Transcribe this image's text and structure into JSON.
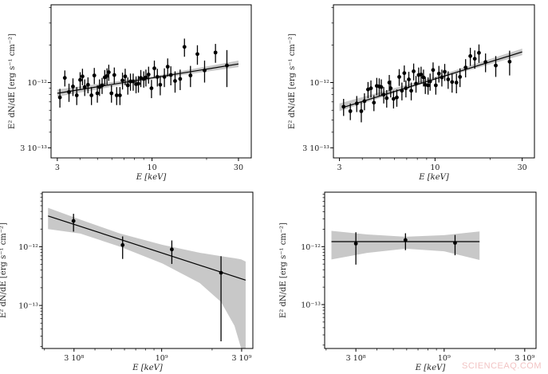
{
  "watermark": "SCIENCEAQ.COM",
  "colors": {
    "points": "#000000",
    "fit_line": "#000000",
    "band": "#c8c8c8",
    "axes": "#000000"
  },
  "chart_data": [
    {
      "type": "scatter",
      "xlabel": "E [keV]",
      "ylabel": "E² dN/dE [erg s⁻¹ cm⁻²]",
      "xscale": "log",
      "yscale": "log",
      "xlim": [
        2.77,
        35.3
      ],
      "ylim": [
        2.49e-13,
        4.2e-12
      ],
      "xticks": [
        {
          "value": 3,
          "label": "3"
        },
        {
          "value": 10,
          "label": "10"
        },
        {
          "value": 30,
          "label": "30"
        }
      ],
      "yticks": [
        {
          "value": 1e-12,
          "label": "10⁻¹²"
        },
        {
          "value": 3e-13,
          "label": "3 10⁻¹³"
        }
      ],
      "xminor": [
        4,
        5,
        6,
        7,
        8,
        9,
        20
      ],
      "yminor": [
        4e-13,
        5e-13,
        6e-13,
        7e-13,
        8e-13,
        9e-13,
        2e-12,
        3e-12,
        4e-12
      ],
      "points": [
        [
          3.1,
          7.6e-13,
          1.3e-13
        ],
        [
          3.3,
          1.09e-12,
          1.6e-13
        ],
        [
          3.48,
          8.4e-13,
          1.4e-13
        ],
        [
          3.66,
          9.3e-13,
          1.5e-13
        ],
        [
          3.84,
          7.9e-13,
          1.3e-13
        ],
        [
          4.01,
          1.05e-12,
          1.6e-13
        ],
        [
          4.13,
          1.12e-12,
          1.7e-13
        ],
        [
          4.25,
          9.2e-13,
          1.4e-13
        ],
        [
          4.43,
          9.6e-13,
          1.4e-13
        ],
        [
          4.63,
          7.9e-13,
          1.3e-13
        ],
        [
          4.8,
          1.14e-12,
          1.7e-13
        ],
        [
          4.99,
          8.2e-13,
          1.3e-13
        ],
        [
          5.13,
          9.2e-13,
          1.4e-13
        ],
        [
          5.3,
          9.5e-13,
          1.4e-13
        ],
        [
          5.48,
          1.1e-12,
          1.6e-13
        ],
        [
          5.64,
          1.13e-12,
          1.7e-13
        ],
        [
          5.77,
          1.21e-12,
          1.8e-13
        ],
        [
          5.97,
          8.2e-13,
          1.3e-13
        ],
        [
          6.19,
          1.15e-12,
          1.7e-13
        ],
        [
          6.38,
          7.9e-13,
          1.3e-13
        ],
        [
          6.65,
          7.9e-13,
          1.3e-13
        ],
        [
          6.87,
          1.04e-12,
          1.6e-13
        ],
        [
          7.11,
          1.12e-12,
          1.7e-13
        ],
        [
          7.35,
          9.5e-13,
          1.5e-13
        ],
        [
          7.6,
          1.02e-12,
          1.6e-13
        ],
        [
          7.87,
          1.02e-12,
          1.6e-13
        ],
        [
          8.16,
          9.7e-13,
          1.5e-13
        ],
        [
          8.41,
          9.8e-13,
          1.5e-13
        ],
        [
          8.67,
          1.09e-12,
          1.7e-13
        ],
        [
          9.0,
          1.07e-12,
          1.6e-13
        ],
        [
          9.25,
          1.1e-12,
          1.7e-13
        ],
        [
          9.57,
          1.16e-12,
          1.8e-13
        ],
        [
          9.93,
          9e-13,
          1.5e-13
        ],
        [
          10.3,
          1.3e-12,
          2e-13
        ],
        [
          10.7,
          1.11e-12,
          1.8e-13
        ],
        [
          11.1,
          9.6e-13,
          1.7e-13
        ],
        [
          11.7,
          1.11e-12,
          1.9e-13
        ],
        [
          12.2,
          1.34e-12,
          2.2e-13
        ],
        [
          12.7,
          1.15e-12,
          2e-13
        ],
        [
          13.4,
          1.03e-12,
          2e-13
        ],
        [
          14.3,
          1.07e-12,
          2e-13
        ],
        [
          15.1,
          1.93e-12,
          3.2e-13
        ],
        [
          16.3,
          1.14e-12,
          2.2e-13
        ],
        [
          17.8,
          1.69e-12,
          3e-13
        ],
        [
          19.5,
          1.25e-12,
          2.5e-13
        ],
        [
          22.4,
          1.74e-12,
          3e-13
        ],
        [
          25.9,
          1.37e-12,
          4.5e-13
        ]
      ],
      "fit_line": [
        [
          3,
          8.2e-13
        ],
        [
          30,
          1.41e-12
        ]
      ],
      "band": [
        [
          3,
          7.7e-13,
          8.8e-13
        ],
        [
          10,
          1.06e-12,
          1.12e-12
        ],
        [
          30,
          1.33e-12,
          1.5e-12
        ]
      ]
    },
    {
      "type": "scatter",
      "xlabel": "E [keV]",
      "ylabel": "E² dN/dE [erg s⁻¹ cm⁻²]",
      "xscale": "log",
      "yscale": "log",
      "xlim": [
        2.78,
        35.0
      ],
      "ylim": [
        2.49e-13,
        4.2e-12
      ],
      "xticks": [
        {
          "value": 3,
          "label": "3"
        },
        {
          "value": 10,
          "label": "10"
        },
        {
          "value": 30,
          "label": "30"
        }
      ],
      "yticks": [
        {
          "value": 1e-12,
          "label": "10⁻¹²"
        },
        {
          "value": 3e-13,
          "label": "3 10⁻¹³"
        }
      ],
      "xminor": [
        4,
        5,
        6,
        7,
        8,
        9,
        20
      ],
      "yminor": [
        4e-13,
        5e-13,
        6e-13,
        7e-13,
        8e-13,
        9e-13,
        2e-12,
        3e-12,
        4e-12
      ],
      "points": [
        [
          3.16,
          6.4e-13,
          1e-13
        ],
        [
          3.44,
          5.9e-13,
          9e-14
        ],
        [
          3.73,
          6.8e-13,
          1e-13
        ],
        [
          3.95,
          5.9e-13,
          1.1e-13
        ],
        [
          4.11,
          7.1e-13,
          1.1e-13
        ],
        [
          4.3,
          8.8e-13,
          1.3e-13
        ],
        [
          4.46,
          9e-13,
          1.4e-13
        ],
        [
          4.63,
          6.9e-13,
          1e-13
        ],
        [
          4.8,
          9.4e-13,
          1.5e-13
        ],
        [
          4.95,
          9.3e-13,
          1.5e-13
        ],
        [
          5.08,
          9.2e-13,
          1.4e-13
        ],
        [
          5.24,
          8e-13,
          1.2e-13
        ],
        [
          5.44,
          7.5e-13,
          1.2e-13
        ],
        [
          5.62,
          1e-12,
          1.5e-13
        ],
        [
          5.72,
          9e-13,
          1.4e-13
        ],
        [
          5.93,
          7.4e-13,
          1.2e-13
        ],
        [
          6.18,
          7.6e-13,
          1.2e-13
        ],
        [
          6.37,
          1.11e-12,
          1.7e-13
        ],
        [
          6.59,
          8.6e-13,
          1.4e-13
        ],
        [
          6.79,
          1.19e-12,
          1.8e-13
        ],
        [
          6.93,
          9e-13,
          1.4e-13
        ],
        [
          7.19,
          1.06e-12,
          1.6e-13
        ],
        [
          7.41,
          8.6e-13,
          1.4e-13
        ],
        [
          7.64,
          1.23e-12,
          1.9e-13
        ],
        [
          7.87,
          9.8e-13,
          1.5e-13
        ],
        [
          8.14,
          1.15e-12,
          1.7e-13
        ],
        [
          8.39,
          1.16e-12,
          1.8e-13
        ],
        [
          8.65,
          1.1e-12,
          1.7e-13
        ],
        [
          8.85,
          9.6e-13,
          1.5e-13
        ],
        [
          9.16,
          9.5e-13,
          1.5e-13
        ],
        [
          9.4,
          1.02e-12,
          1.6e-13
        ],
        [
          9.76,
          1.26e-12,
          1.9e-13
        ],
        [
          10.1,
          9.5e-13,
          1.5e-13
        ],
        [
          10.5,
          1.18e-12,
          1.8e-13
        ],
        [
          10.9,
          1.1e-12,
          1.7e-13
        ],
        [
          11.3,
          1.22e-12,
          1.9e-13
        ],
        [
          11.8,
          1.06e-12,
          1.7e-13
        ],
        [
          12.4,
          1.01e-12,
          1.8e-13
        ],
        [
          13.1,
          1e-12,
          1.8e-13
        ],
        [
          13.7,
          1.11e-12,
          1.9e-13
        ],
        [
          14.7,
          1.32e-12,
          2.2e-13
        ],
        [
          15.6,
          1.63e-12,
          2.7e-13
        ],
        [
          16.5,
          1.55e-12,
          2.6e-13
        ],
        [
          17.4,
          1.73e-12,
          2.9e-13
        ],
        [
          18.9,
          1.46e-12,
          2.5e-13
        ],
        [
          21.5,
          1.37e-12,
          2.6e-13
        ],
        [
          25.6,
          1.47e-12,
          3.3e-13
        ]
      ],
      "fit_line": [
        [
          3.12,
          6.3e-13
        ],
        [
          30,
          1.76e-12
        ]
      ],
      "band": [
        [
          3,
          5.9e-13,
          6.8e-13
        ],
        [
          10,
          1.05e-12,
          1.11e-12
        ],
        [
          30,
          1.66e-12,
          1.87e-12
        ]
      ]
    },
    {
      "type": "scatter",
      "xlabel": "E [keV]",
      "ylabel": "E² dN/dE [erg s⁻¹ cm⁻²]",
      "xscale": "log",
      "yscale": "log",
      "xlim": [
        194000000.0,
        3500000000.0
      ],
      "ylim": [
        1.85e-14,
        8.5e-12
      ],
      "xticks": [
        {
          "value": 300000000.0,
          "label": "3 10⁸"
        },
        {
          "value": 1000000000.0,
          "label": "10⁹"
        },
        {
          "value": 3000000000.0,
          "label": "3 10⁹"
        }
      ],
      "yticks": [
        {
          "value": 1e-12,
          "label": "10⁻¹²"
        },
        {
          "value": 1e-13,
          "label": "10⁻¹³"
        }
      ],
      "xminor": [
        200000000.0,
        400000000.0,
        500000000.0,
        600000000.0,
        700000000.0,
        800000000.0,
        900000000.0,
        2000000000.0
      ],
      "yminor": [
        2e-14,
        3e-14,
        4e-14,
        5e-14,
        6e-14,
        7e-14,
        8e-14,
        9e-14,
        2e-13,
        3e-13,
        4e-13,
        5e-13,
        6e-13,
        7e-13,
        8e-13,
        9e-13,
        2e-12,
        3e-12,
        4e-12,
        5e-12,
        6e-12,
        7e-12,
        8e-12
      ],
      "points": [
        [
          298000000.0,
          2.75e-12,
          1.81e-12,
          3.64e-12
        ],
        [
          585000000.0,
          1.07e-12,
          6.2e-13,
          1.5e-12
        ],
        [
          1150000000.0,
          9e-13,
          5.1e-13,
          1.28e-12
        ],
        [
          2260000000.0,
          3.6e-13,
          2.45e-14,
          6.9e-13
        ]
      ],
      "fit_line": [
        [
          210000000.0,
          3.35e-12
        ],
        [
          3170000000.0,
          2.7e-13
        ]
      ],
      "band": [
        [
          210000000.0,
          2e-12,
          4.6e-12
        ],
        [
          327000000.0,
          1.68e-12,
          2.9e-12
        ],
        [
          565000000.0,
          1e-12,
          1.68e-12
        ],
        [
          1010000000.0,
          5.2e-13,
          1.08e-12
        ],
        [
          1690000000.0,
          2.4e-13,
          7.9e-13
        ],
        [
          2260000000.0,
          1.15e-13,
          6.9e-13
        ],
        [
          2720000000.0,
          4.5e-14,
          6.4e-13
        ],
        [
          2980000000.0,
          1.85e-14,
          6.1e-13
        ],
        [
          3170000000.0,
          1e-14,
          5.6e-13
        ]
      ]
    },
    {
      "type": "scatter",
      "xlabel": "E [keV]",
      "ylabel": "E² dN/dE [erg s⁻¹ cm⁻²]",
      "xscale": "log",
      "yscale": "log",
      "xlim": [
        196000000.0,
        3500000000.0
      ],
      "ylim": [
        1.75e-14,
        8.7e-12
      ],
      "xticks": [
        {
          "value": 300000000.0,
          "label": "3 10⁸"
        },
        {
          "value": 1000000000.0,
          "label": "10⁹"
        },
        {
          "value": 3000000000.0,
          "label": "3 10⁹"
        }
      ],
      "yticks": [
        {
          "value": 1e-12,
          "label": "10⁻¹²"
        },
        {
          "value": 1e-13,
          "label": "10⁻¹³"
        }
      ],
      "xminor": [
        200000000.0,
        400000000.0,
        500000000.0,
        600000000.0,
        700000000.0,
        800000000.0,
        900000000.0,
        2000000000.0
      ],
      "yminor": [
        2e-14,
        3e-14,
        4e-14,
        5e-14,
        6e-14,
        7e-14,
        8e-14,
        9e-14,
        2e-13,
        3e-13,
        4e-13,
        5e-13,
        6e-13,
        7e-13,
        8e-13,
        9e-13,
        2e-12,
        3e-12,
        4e-12,
        5e-12,
        6e-12,
        7e-12,
        8e-12
      ],
      "points": [
        [
          300000000.0,
          1.13e-12,
          4.9e-13,
          1.77e-12
        ],
        [
          590000000.0,
          1.3e-12,
          8.7e-13,
          1.7e-12
        ],
        [
          1160000000.0,
          1.16e-12,
          7.1e-13,
          1.59e-12
        ]
      ],
      "fit_line": [
        [
          215000000.0,
          1.22e-12
        ],
        [
          1620000000.0,
          1.22e-12
        ]
      ],
      "band": [
        [
          215000000.0,
          6e-13,
          1.87e-12
        ],
        [
          350000000.0,
          7.8e-13,
          1.62e-12
        ],
        [
          590000000.0,
          9.2e-13,
          1.48e-12
        ],
        [
          1000000000.0,
          8.3e-13,
          1.58e-12
        ],
        [
          1620000000.0,
          5.9e-13,
          1.83e-12
        ]
      ]
    }
  ]
}
